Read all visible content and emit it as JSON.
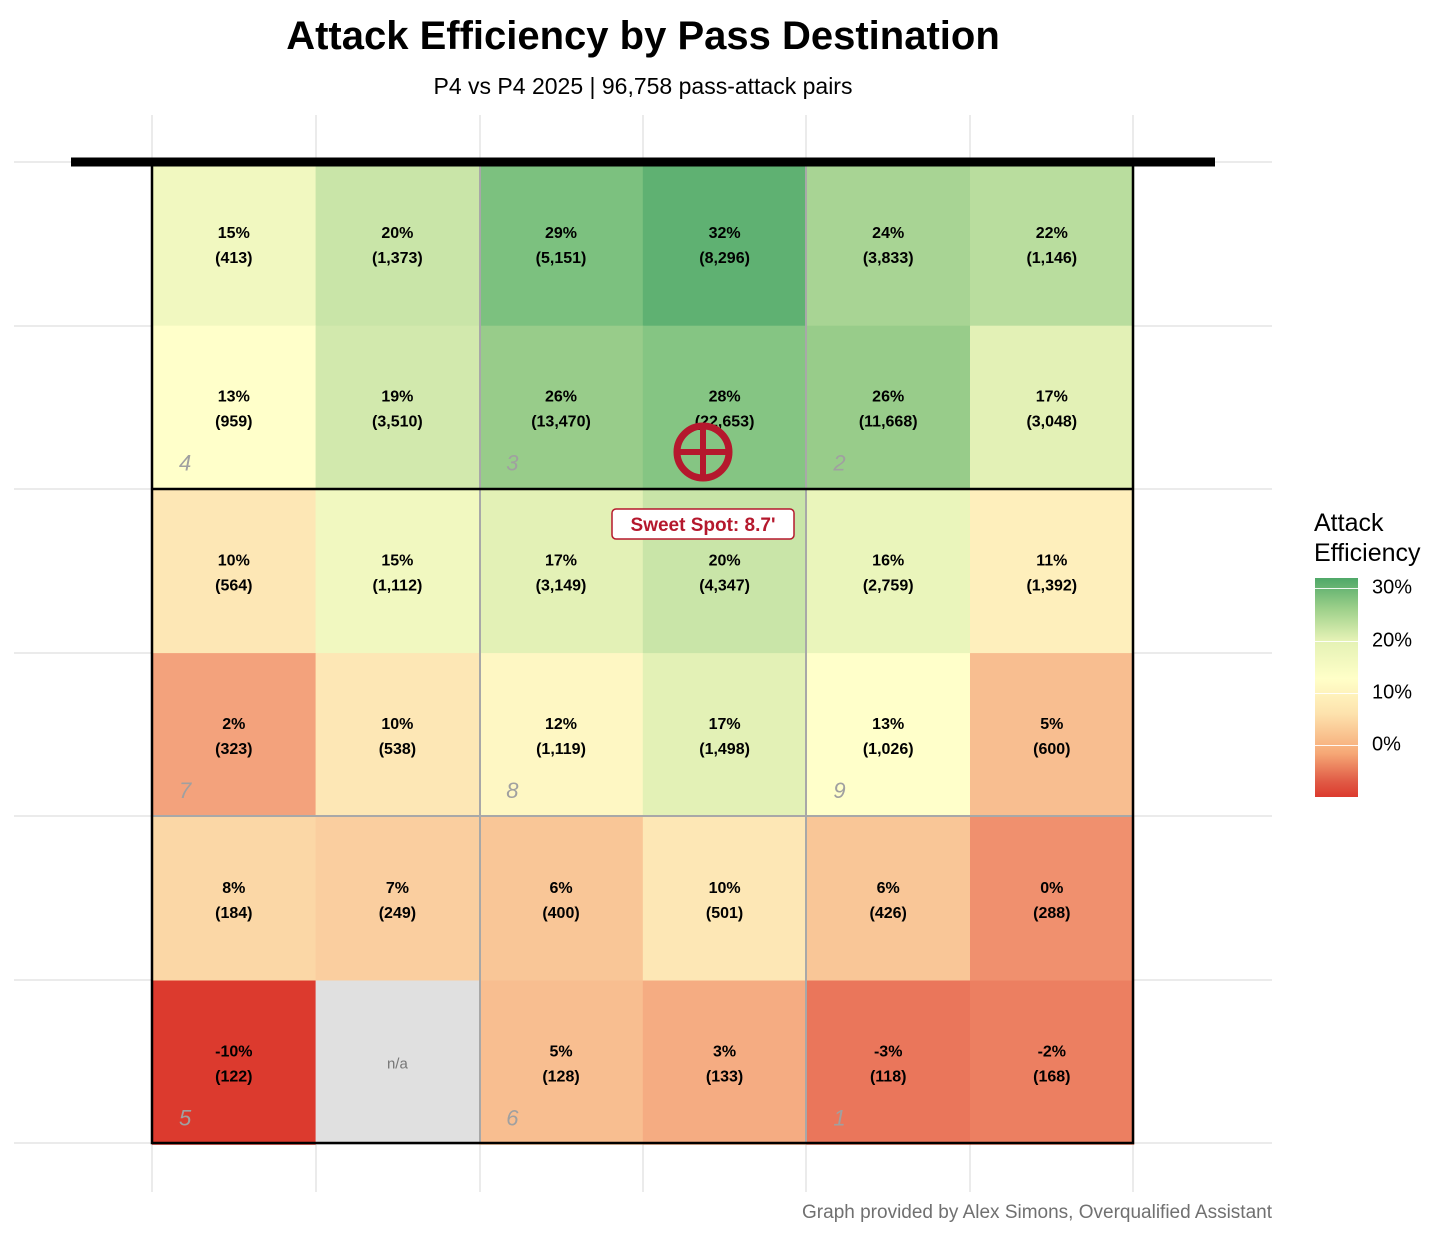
{
  "title": "Attack Efficiency by Pass Destination",
  "subtitle": "P4 vs P4 2025 | 96,758 pass-attack pairs",
  "caption": "Graph provided by Alex Simons, Overqualified Assistant",
  "annotation": {
    "label": "Sweet Spot: 8.7'",
    "marker": "crosshair-circle-icon",
    "color": "#b5182d"
  },
  "legend": {
    "title_line1": "Attack",
    "title_line2": "Efficiency",
    "ticks": [
      "30%",
      "20%",
      "10%",
      "0%"
    ],
    "tick_values": [
      30,
      20,
      10,
      0
    ],
    "scale_min": -10,
    "scale_max": 32,
    "colors": [
      "#dc3a2e",
      "#ffffc8",
      "#4fa868"
    ]
  },
  "chart_data": {
    "type": "heatmap",
    "title": "Attack Efficiency by Pass Destination",
    "subtitle": "P4 vs P4 2025 | 96,758 pass-attack pairs",
    "xlabel": "",
    "ylabel": "",
    "na_label": "n/a",
    "na_color": "#e0e0e0",
    "rows": [
      [
        {
          "eff": 15,
          "n": "413"
        },
        {
          "eff": 20,
          "n": "1,373"
        },
        {
          "eff": 29,
          "n": "5,151"
        },
        {
          "eff": 32,
          "n": "8,296"
        },
        {
          "eff": 24,
          "n": "3,833"
        },
        {
          "eff": 22,
          "n": "1,146"
        }
      ],
      [
        {
          "eff": 13,
          "n": "959"
        },
        {
          "eff": 19,
          "n": "3,510"
        },
        {
          "eff": 26,
          "n": "13,470"
        },
        {
          "eff": 28,
          "n": "22,653"
        },
        {
          "eff": 26,
          "n": "11,668"
        },
        {
          "eff": 17,
          "n": "3,048"
        }
      ],
      [
        {
          "eff": 10,
          "n": "564"
        },
        {
          "eff": 15,
          "n": "1,112"
        },
        {
          "eff": 17,
          "n": "3,149"
        },
        {
          "eff": 20,
          "n": "4,347"
        },
        {
          "eff": 16,
          "n": "2,759"
        },
        {
          "eff": 11,
          "n": "1,392"
        }
      ],
      [
        {
          "eff": 2,
          "n": "323"
        },
        {
          "eff": 10,
          "n": "538"
        },
        {
          "eff": 12,
          "n": "1,119"
        },
        {
          "eff": 17,
          "n": "1,498"
        },
        {
          "eff": 13,
          "n": "1,026"
        },
        {
          "eff": 5,
          "n": "600"
        }
      ],
      [
        {
          "eff": 8,
          "n": "184"
        },
        {
          "eff": 7,
          "n": "249"
        },
        {
          "eff": 6,
          "n": "400"
        },
        {
          "eff": 10,
          "n": "501"
        },
        {
          "eff": 6,
          "n": "426"
        },
        {
          "eff": 0,
          "n": "288"
        }
      ],
      [
        {
          "eff": -10,
          "n": "122"
        },
        null,
        {
          "eff": 5,
          "n": "128"
        },
        {
          "eff": 3,
          "n": "133"
        },
        {
          "eff": -3,
          "n": "118"
        },
        {
          "eff": -2,
          "n": "168"
        }
      ]
    ],
    "zones": [
      {
        "label": "4",
        "row": 1,
        "col": 0
      },
      {
        "label": "3",
        "row": 1,
        "col": 2
      },
      {
        "label": "2",
        "row": 1,
        "col": 4
      },
      {
        "label": "7",
        "row": 3,
        "col": 0
      },
      {
        "label": "8",
        "row": 3,
        "col": 2
      },
      {
        "label": "9",
        "row": 3,
        "col": 4
      },
      {
        "label": "5",
        "row": 5,
        "col": 0
      },
      {
        "label": "6",
        "row": 5,
        "col": 2
      },
      {
        "label": "1",
        "row": 5,
        "col": 4
      }
    ],
    "legend_position": "right",
    "grid": true
  }
}
